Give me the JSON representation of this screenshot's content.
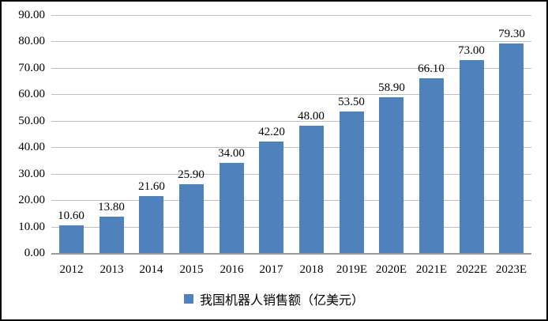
{
  "chart_data": {
    "type": "bar",
    "categories": [
      "2012",
      "2013",
      "2014",
      "2015",
      "2016",
      "2017",
      "2018",
      "2019E",
      "2020E",
      "2021E",
      "2022E",
      "2023E"
    ],
    "values": [
      10.6,
      13.8,
      21.6,
      25.9,
      34.0,
      42.2,
      48.0,
      53.5,
      58.9,
      66.1,
      73.0,
      79.3
    ],
    "value_labels": [
      "10.60",
      "13.80",
      "21.60",
      "25.90",
      "34.00",
      "42.20",
      "48.00",
      "53.50",
      "58.90",
      "66.10",
      "73.00",
      "79.30"
    ],
    "series_name": "我国机器人销售额（亿美元）",
    "ylim": [
      0,
      90
    ],
    "ytick_step": 10,
    "ytick_labels": [
      "0.00",
      "10.00",
      "20.00",
      "30.00",
      "40.00",
      "50.00",
      "60.00",
      "70.00",
      "80.00",
      "90.00"
    ],
    "grid": true,
    "legend_position": "bottom",
    "bar_color": "#4F81BD",
    "gridline_color": "#BFBFBF",
    "axis_line_color": "#9B9B9B",
    "text_color": "#000000",
    "background_color": "#FFFFFF",
    "border_color": "#000000"
  }
}
